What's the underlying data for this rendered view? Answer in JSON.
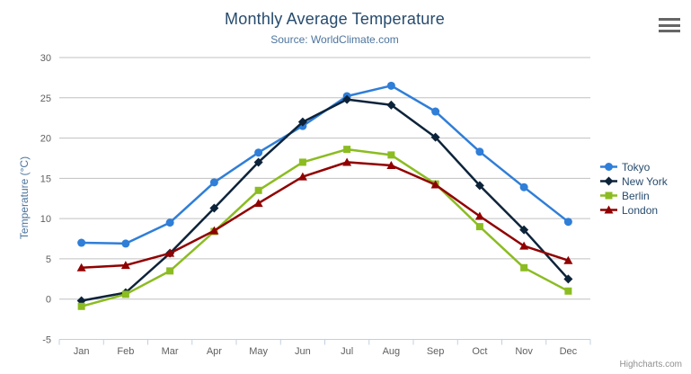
{
  "chart_data": {
    "type": "line",
    "title": "Monthly Average Temperature",
    "subtitle": "Source: WorldClimate.com",
    "xlabel": "",
    "ylabel": "Temperature (°C)",
    "ylim": [
      -5,
      30
    ],
    "yticks": [
      -5,
      0,
      5,
      10,
      15,
      20,
      25,
      30
    ],
    "grid": true,
    "legend_position": "right",
    "categories": [
      "Jan",
      "Feb",
      "Mar",
      "Apr",
      "May",
      "Jun",
      "Jul",
      "Aug",
      "Sep",
      "Oct",
      "Nov",
      "Dec"
    ],
    "series": [
      {
        "name": "Tokyo",
        "color": "#2f7ed8",
        "marker": "circle",
        "values": [
          7.0,
          6.9,
          9.5,
          14.5,
          18.2,
          21.5,
          25.2,
          26.5,
          23.3,
          18.3,
          13.9,
          9.6
        ]
      },
      {
        "name": "New York",
        "color": "#0d233a",
        "marker": "diamond",
        "values": [
          -0.2,
          0.8,
          5.7,
          11.3,
          17.0,
          22.0,
          24.8,
          24.1,
          20.1,
          14.1,
          8.6,
          2.5
        ]
      },
      {
        "name": "Berlin",
        "color": "#8bbc21",
        "marker": "square",
        "values": [
          -0.9,
          0.6,
          3.5,
          8.4,
          13.5,
          17.0,
          18.6,
          17.9,
          14.3,
          9.0,
          3.9,
          1.0
        ]
      },
      {
        "name": "London",
        "color": "#910000",
        "marker": "triangle",
        "values": [
          3.9,
          4.2,
          5.7,
          8.5,
          11.9,
          15.2,
          17.0,
          16.6,
          14.2,
          10.3,
          6.6,
          4.8
        ]
      }
    ],
    "colors": {
      "title_text": "#274b6d",
      "subtitle_text": "#4d759e",
      "axis_label_text": "#606060",
      "grid_line": "#c0c0c0",
      "axis_line": "#c0d0e0"
    }
  },
  "credits": {
    "text": "Highcharts.com"
  },
  "context_button": {
    "icon": "hamburger-menu-icon"
  }
}
